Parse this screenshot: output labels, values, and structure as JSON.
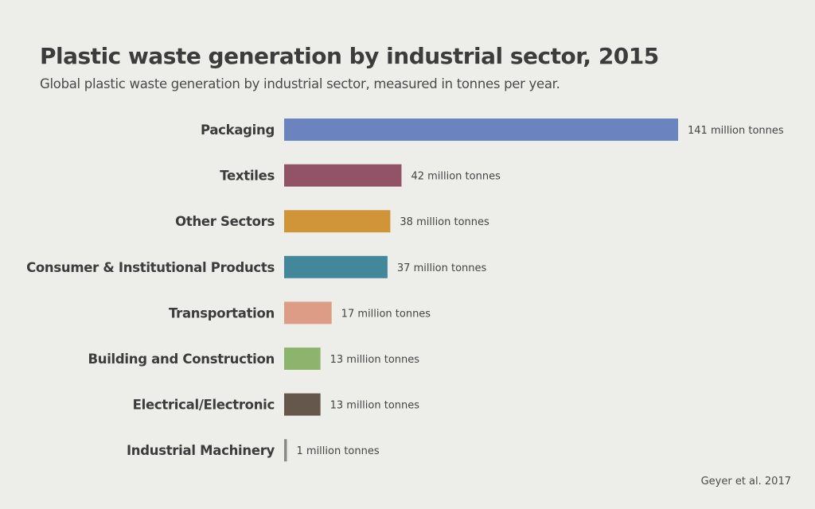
{
  "chart_data": {
    "type": "bar",
    "orientation": "horizontal",
    "title": "Plastic waste generation by industrial sector, 2015",
    "subtitle": "Global plastic waste generation by industrial sector, measured in tonnes per year.",
    "source": "Geyer et al. 2017",
    "unit_suffix": " million tonnes",
    "categories": [
      "Packaging",
      "Textiles",
      "Other Sectors",
      "Consumer & Institutional Products",
      "Transportation",
      "Building and Construction",
      "Electrical/Electronic",
      "Industrial Machinery"
    ],
    "values": [
      141,
      42,
      38,
      37,
      17,
      13,
      13,
      1
    ],
    "value_labels": [
      "141 million tonnes",
      "42 million tonnes",
      "38 million tonnes",
      "37 million tonnes",
      "17 million tonnes",
      "13 million tonnes",
      "13 million tonnes",
      "1 million tonnes"
    ],
    "colors": [
      "#6b84bf",
      "#925368",
      "#cf9538",
      "#43889a",
      "#dd9c85",
      "#8cb46d",
      "#65574c",
      "#8a8a8a"
    ],
    "grid": false,
    "legend": "none"
  }
}
